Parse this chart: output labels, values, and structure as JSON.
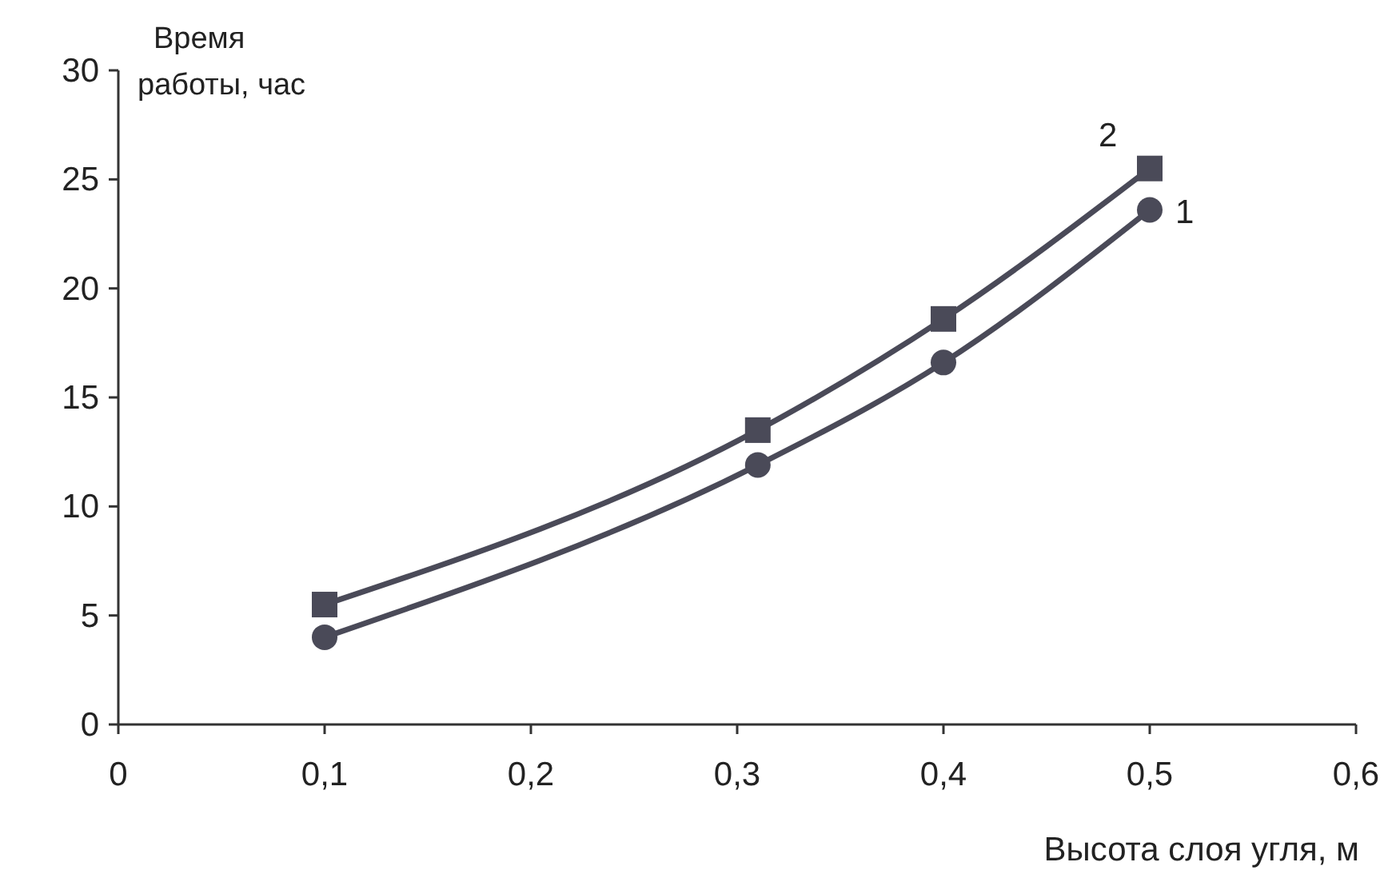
{
  "chart_data": {
    "type": "line",
    "xlabel": "Высота слоя угля, м",
    "ylabel": "Время работы, час",
    "xlim": [
      0,
      0.6
    ],
    "ylim": [
      0,
      30
    ],
    "xticks": [
      {
        "value": 0,
        "label": "0"
      },
      {
        "value": 0.1,
        "label": "0,1"
      },
      {
        "value": 0.2,
        "label": "0,2"
      },
      {
        "value": 0.3,
        "label": "0,3"
      },
      {
        "value": 0.4,
        "label": "0,4"
      },
      {
        "value": 0.5,
        "label": "0,5"
      },
      {
        "value": 0.6,
        "label": "0,6"
      }
    ],
    "yticks": [
      0,
      5,
      10,
      15,
      20,
      25,
      30
    ],
    "x": [
      0.1,
      0.31,
      0.4,
      0.5
    ],
    "line_style": "solid",
    "series": [
      {
        "name": "1",
        "color": "#4a4a58",
        "marker": "circle",
        "values": [
          4.0,
          11.9,
          16.6,
          23.6
        ]
      },
      {
        "name": "2",
        "color": "#4a4a58",
        "marker": "square",
        "values": [
          5.5,
          13.5,
          18.6,
          25.5
        ]
      }
    ]
  }
}
